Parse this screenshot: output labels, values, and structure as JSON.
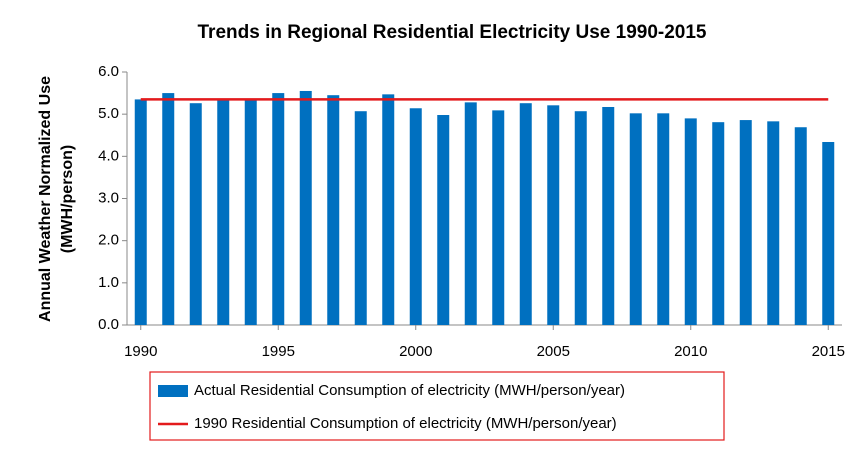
{
  "chart_data": {
    "type": "bar",
    "title": "Trends in Regional Residential Electricity Use 1990-2015",
    "ylabel": [
      "Annual Weather Normalized Use",
      "(MWH/person)"
    ],
    "x": [
      1990,
      1991,
      1992,
      1993,
      1994,
      1995,
      1996,
      1997,
      1998,
      1999,
      2000,
      2001,
      2002,
      2003,
      2004,
      2005,
      2006,
      2007,
      2008,
      2009,
      2010,
      2011,
      2012,
      2013,
      2014,
      2015
    ],
    "series": [
      {
        "name": "Actual Residential Consumption of electricity (MWH/person/year)",
        "type": "bar",
        "color": "#0070c0",
        "values": [
          5.35,
          5.5,
          5.26,
          5.33,
          5.35,
          5.5,
          5.55,
          5.45,
          5.07,
          5.47,
          5.14,
          4.98,
          5.28,
          5.09,
          5.26,
          5.21,
          5.07,
          5.17,
          5.02,
          5.02,
          4.9,
          4.81,
          4.86,
          4.83,
          4.69,
          4.34
        ]
      },
      {
        "name": "1990 Residential Consumption of electricity (MWH/person/year)",
        "type": "line",
        "color": "#e31a1c",
        "values": [
          5.35,
          5.35,
          5.35,
          5.35,
          5.35,
          5.35,
          5.35,
          5.35,
          5.35,
          5.35,
          5.35,
          5.35,
          5.35,
          5.35,
          5.35,
          5.35,
          5.35,
          5.35,
          5.35,
          5.35,
          5.35,
          5.35,
          5.35,
          5.35,
          5.35,
          5.35
        ]
      }
    ],
    "xlim": [
      1989.5,
      2015.5
    ],
    "xticks": [
      1990,
      1995,
      2000,
      2005,
      2010,
      2015
    ],
    "ylim": [
      0,
      6
    ],
    "yticks": [
      {
        "value": 0,
        "label": "0.0"
      },
      {
        "value": 1,
        "label": "1.0"
      },
      {
        "value": 2,
        "label": "2.0"
      },
      {
        "value": 3,
        "label": "3.0"
      },
      {
        "value": 4,
        "label": "4.0"
      },
      {
        "value": 5,
        "label": "5.0"
      },
      {
        "value": 6,
        "label": "6.0"
      }
    ],
    "grid": false,
    "legend": "bottom"
  }
}
